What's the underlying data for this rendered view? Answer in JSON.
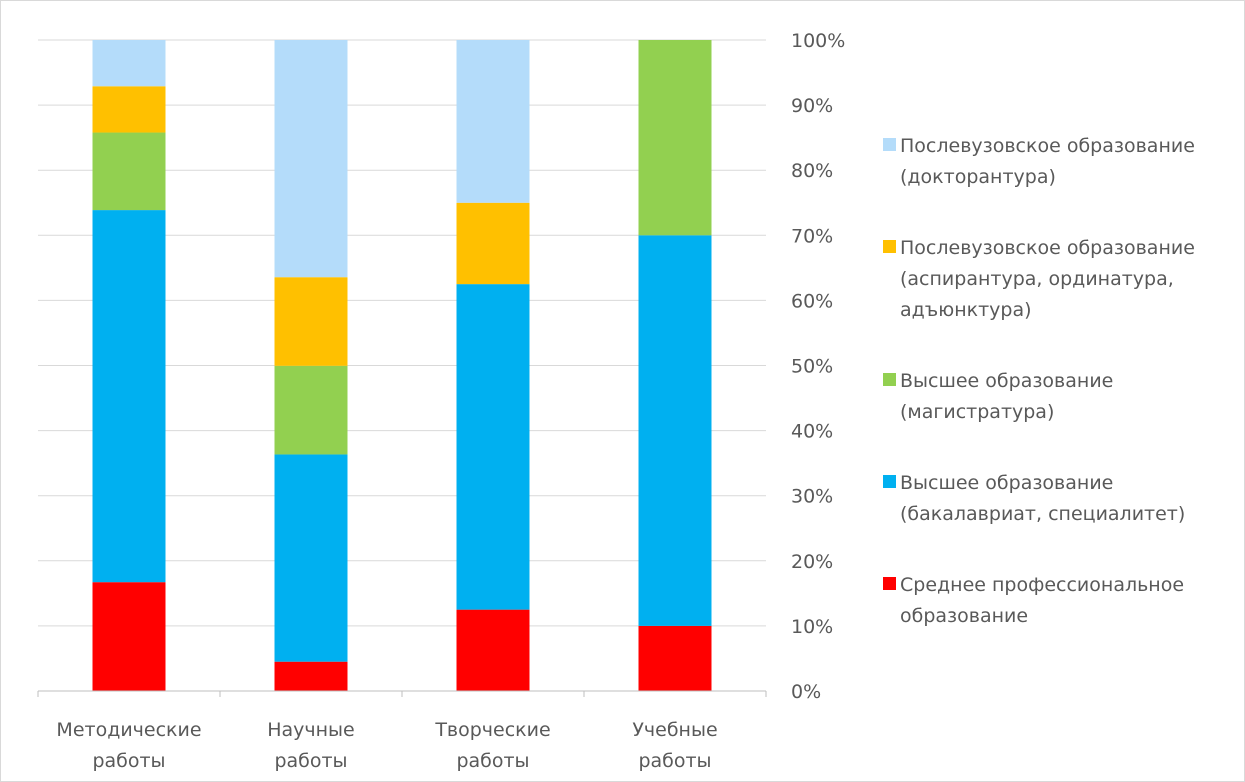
{
  "chart_data": {
    "type": "bar",
    "stacked": true,
    "percent_stacked": true,
    "categories": [
      "Методические работы",
      "Научные работы",
      "Творческие работы",
      "Учебные работы"
    ],
    "category_lines": [
      [
        "Методические",
        "работы"
      ],
      [
        "Научные",
        "работы"
      ],
      [
        "Творческие",
        "работы"
      ],
      [
        "Учебные",
        "работы"
      ]
    ],
    "series": [
      {
        "name": "Среднее профессиональное образование",
        "name_lines": [
          "Среднее профессиональное",
          "образование"
        ],
        "color": "#ff0000",
        "values": [
          16.7,
          4.5,
          12.5,
          10.0
        ]
      },
      {
        "name": "Высшее образование (бакалавриат, специалитет)",
        "name_lines": [
          "Высшее образование",
          "(бакалавриат, специалитет)"
        ],
        "color": "#00b0f0",
        "values": [
          57.1,
          31.8,
          50.0,
          60.0
        ]
      },
      {
        "name": "Высшее образование (магистратура)",
        "name_lines": [
          "Высшее образование",
          "(магистратура)"
        ],
        "color": "#92d050",
        "values": [
          11.9,
          13.6,
          0.0,
          30.0
        ]
      },
      {
        "name": "Послевузовское образование (аспирантура, ординатура, адъюнктура)",
        "name_lines": [
          "Послевузовское образование",
          "(аспирантура, ординатура,",
          "адъюнктура)"
        ],
        "color": "#ffc000",
        "values": [
          7.1,
          13.6,
          12.5,
          0.0
        ]
      },
      {
        "name": "Послевузовское образование (докторантура)",
        "name_lines": [
          "Послевузовское образование",
          "(докторантура)"
        ],
        "color": "#b4dcfa",
        "values": [
          7.1,
          36.4,
          25.0,
          0.0
        ]
      }
    ],
    "yticks": [
      "0%",
      "10%",
      "20%",
      "30%",
      "40%",
      "50%",
      "60%",
      "70%",
      "80%",
      "90%",
      "100%"
    ],
    "ylim": [
      0,
      100
    ],
    "y_axis_side": "right",
    "grid": true,
    "legend_position": "right",
    "title": "",
    "xlabel": "",
    "ylabel": "",
    "colors": {
      "gridline": "#d9d9d9",
      "text": "#595959",
      "axis": "#bfbfbf"
    }
  }
}
